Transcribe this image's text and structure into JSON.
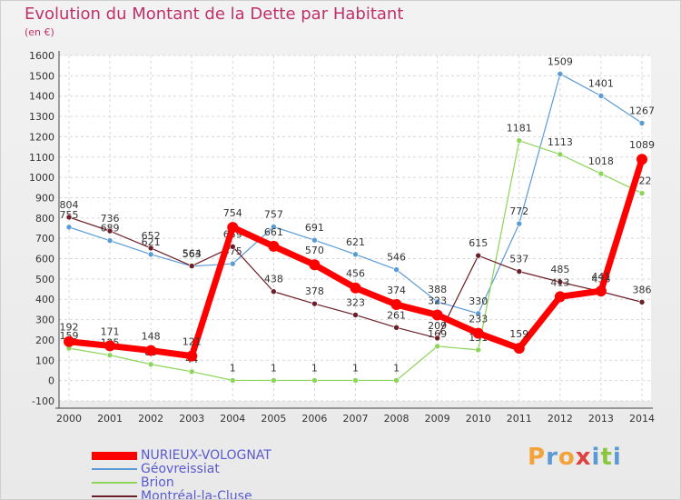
{
  "title": "Evolution du Montant de la Dette par Habitant",
  "subtitle": "(en €)",
  "brand": {
    "letters": [
      "P",
      "r",
      "o",
      "x",
      "i",
      "t",
      "i"
    ],
    "colors": [
      "#f2a33a",
      "#5b9bd5",
      "#f2a33a",
      "#e04040",
      "#5b9bd5",
      "#8cc63f",
      "#5b9bd5"
    ]
  },
  "chart_data": {
    "type": "line",
    "x": [
      "2000",
      "2001",
      "2002",
      "2003",
      "2004",
      "2005",
      "2006",
      "2007",
      "2008",
      "2009",
      "2010",
      "2011",
      "2012",
      "2013",
      "2014"
    ],
    "ylim": [
      -100,
      1600
    ],
    "yticks": [
      -100,
      0,
      100,
      200,
      300,
      400,
      500,
      600,
      700,
      800,
      900,
      1000,
      1100,
      1200,
      1300,
      1400,
      1500,
      1600
    ],
    "grid": true,
    "legend_position": "bottom-left",
    "series": [
      {
        "name": "Géovreissiat",
        "color": "#5b9bd5",
        "values": [
          755,
          689,
          621,
          563,
          575,
          757,
          691,
          621,
          546,
          388,
          330,
          772,
          1509,
          1401,
          1267
        ]
      },
      {
        "name": "Brion",
        "color": "#8cd45a",
        "values": [
          159,
          125,
          80,
          44,
          1,
          1,
          1,
          1,
          1,
          169,
          151,
          1181,
          1113,
          1018,
          922
        ]
      },
      {
        "name": "Montréal-la-Cluse",
        "color": "#6b1f28",
        "values": [
          804,
          736,
          652,
          564,
          659,
          438,
          378,
          323,
          261,
          209,
          615,
          537,
          485,
          438,
          386
        ]
      },
      {
        "name": "NURIEUX-VOLOGNAT",
        "color": "#ff0000",
        "values": [
          192,
          171,
          148,
          121,
          754,
          661,
          570,
          456,
          374,
          323,
          233,
          159,
          413,
          441,
          1089
        ]
      }
    ],
    "data_labels": {
      "Géovreissiat": [
        "755",
        "689",
        "621",
        "563",
        "575",
        "757",
        "691",
        "621",
        "546",
        "388",
        "330",
        "772",
        "1509",
        "1401",
        "1267"
      ],
      "Brion": [
        "159",
        "125",
        "80",
        "44",
        "1",
        "1",
        "1",
        "1",
        "1",
        "169",
        "151",
        "1181",
        "1113",
        "1018",
        "922"
      ],
      "Montréal-la-Cluse": [
        "804",
        "736",
        "652",
        "564",
        "659",
        "438",
        "378",
        "323",
        "261",
        "209",
        "615",
        "537",
        "485",
        "438",
        "386"
      ],
      "NURIEUX-VOLOGNAT": [
        "192",
        "171",
        "148",
        "121",
        "754",
        "661",
        "570",
        "456",
        "374",
        "323",
        "233",
        "159",
        "413",
        "441",
        "1089"
      ]
    }
  }
}
